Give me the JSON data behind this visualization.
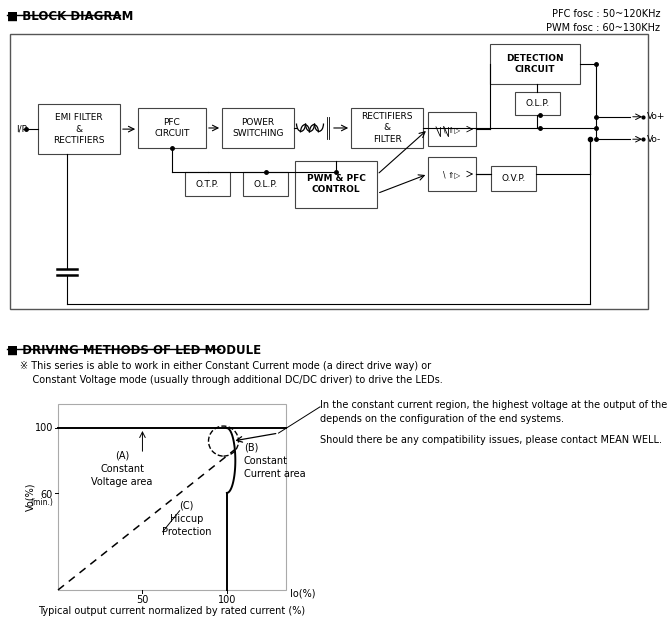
{
  "title_block": "■ BLOCK DIAGRAM",
  "title_driving": "■ DRIVING METHODS OF LED MODULE",
  "pfc_text": "PFC fosc : 50~120KHz\nPWM fosc : 60~130KHz",
  "note_text": "※ This series is able to work in either Constant Current mode (a direct drive way) or\n    Constant Voltage mode (usually through additional DC/DC driver) to drive the LEDs.",
  "right_text_line1": "In the constant current region, the highest voltage at the output of the driver",
  "right_text_line2": "depends on the configuration of the end systems.",
  "right_text_line3": "Should there be any compatibility issues, please contact MEAN WELL.",
  "caption": "Typical output current normalized by rated current (%)",
  "label_A": "(A)\nConstant\nVoltage area",
  "label_B": "(B)\nConstant\nCurrent area",
  "label_C": "(C)\nHiccup\nProtection",
  "bg_color": "#ffffff",
  "gray": "#888888",
  "darkgray": "#555555"
}
